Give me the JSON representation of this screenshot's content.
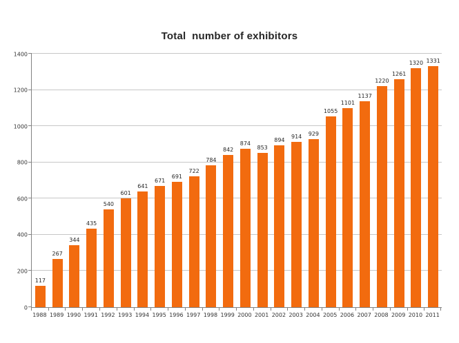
{
  "chart_data": {
    "type": "bar",
    "title": "Total  number of exhibitors",
    "categories": [
      "1988",
      "1989",
      "1990",
      "1991",
      "1992",
      "1993",
      "1994",
      "1995",
      "1996",
      "1997",
      "1998",
      "1999",
      "2000",
      "2001",
      "2002",
      "2003",
      "2004",
      "2005",
      "2006",
      "2007",
      "2008",
      "2009",
      "2010",
      "2011"
    ],
    "values": [
      117,
      267,
      344,
      435,
      540,
      601,
      641,
      671,
      691,
      722,
      784,
      842,
      874,
      853,
      894,
      914,
      929,
      1055,
      1101,
      1137,
      1220,
      1261,
      1320,
      1331
    ],
    "xlabel": "",
    "ylabel": "",
    "ylim": [
      0,
      1400
    ],
    "ytick_step": 200,
    "grid": true,
    "legend_position": "none",
    "bar_color": "#f26b0f",
    "gridline_color": "#c6c6c6",
    "axis_color": "#808080",
    "label_color": "#262626"
  }
}
